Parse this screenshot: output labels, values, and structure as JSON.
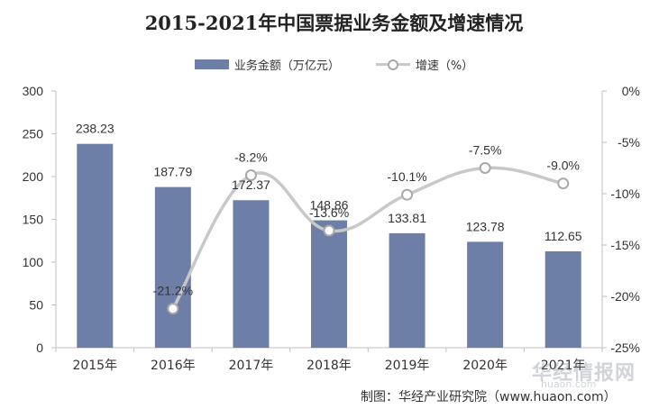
{
  "chart_data": {
    "type": "bar",
    "title": "2015-2021年中国票据业务金额及增速情况",
    "categories": [
      "2015年",
      "2016年",
      "2017年",
      "2018年",
      "2019年",
      "2020年",
      "2021年"
    ],
    "series": [
      {
        "name": "业务金额（万亿元）",
        "type": "bar",
        "axis": "left",
        "color": "#6d7fa7",
        "values": [
          238.23,
          187.79,
          172.37,
          148.86,
          133.81,
          123.78,
          112.65
        ],
        "labels": [
          "238.23",
          "187.79",
          "172.37",
          "148.86",
          "133.81",
          "123.78",
          "112.65"
        ]
      },
      {
        "name": "增速（%）",
        "type": "line",
        "axis": "right",
        "color": "#c8c8c8",
        "values": [
          null,
          -21.2,
          -8.2,
          -13.6,
          -10.1,
          -7.5,
          -9.0
        ],
        "labels": [
          "",
          "-21.2%",
          "-8.2%",
          "-13.6%",
          "-10.1%",
          "-7.5%",
          "-9.0%"
        ]
      }
    ],
    "y_left": {
      "min": 0,
      "max": 300,
      "ticks": [
        "0",
        "50",
        "100",
        "150",
        "200",
        "250",
        "300"
      ]
    },
    "y_right": {
      "min": -25,
      "max": 0,
      "ticks": [
        "-25%",
        "-20%",
        "-15%",
        "-10%",
        "-5%",
        "0%"
      ]
    },
    "legend_position": "top-center",
    "grid": false
  },
  "credit": "制图：华经产业研究院（www.huaon.com）",
  "watermark": "华经情报网",
  "watermark_sub": "huaon.com"
}
